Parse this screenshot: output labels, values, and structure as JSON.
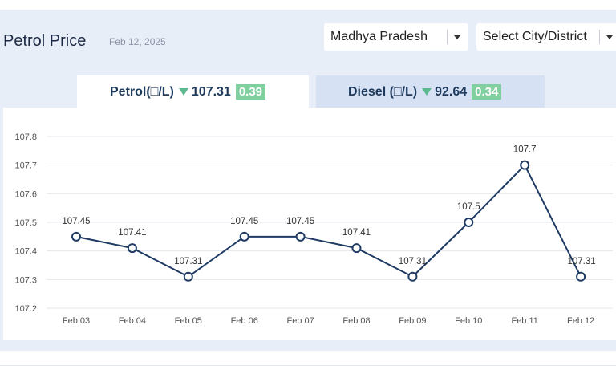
{
  "header": {
    "title": "Petrol Price",
    "date": "Feb 12, 2025",
    "state_select": "Madhya Pradesh",
    "city_select": "Select City/District"
  },
  "tabs": [
    {
      "label": "Petrol(□/L)",
      "price": "107.31",
      "change": "0.39",
      "direction": "down",
      "active": true
    },
    {
      "label": "Diesel (□/L)",
      "price": "92.64",
      "change": "0.34",
      "direction": "down",
      "active": false
    }
  ],
  "colors": {
    "line": "#1f3b63",
    "badge": "#7fcf9f",
    "panel": "#e8eef8",
    "inactive_tab": "#d6e1f4"
  },
  "chart_data": {
    "type": "line",
    "categories": [
      "Feb 03",
      "Feb 04",
      "Feb 05",
      "Feb 06",
      "Feb 07",
      "Feb 08",
      "Feb 09",
      "Feb 10",
      "Feb 11",
      "Feb 12"
    ],
    "values": [
      107.45,
      107.41,
      107.31,
      107.45,
      107.45,
      107.41,
      107.31,
      107.5,
      107.7,
      107.31
    ],
    "data_labels": [
      "107.45",
      "107.41",
      "107.31",
      "107.45",
      "107.45",
      "107.41",
      "107.31",
      "107.5",
      "107.7",
      "107.31"
    ],
    "yticks": [
      "107.8",
      "107.7",
      "107.6",
      "107.5",
      "107.4",
      "107.3",
      "107.2"
    ],
    "ylim": [
      107.2,
      107.8
    ],
    "grid": true
  }
}
